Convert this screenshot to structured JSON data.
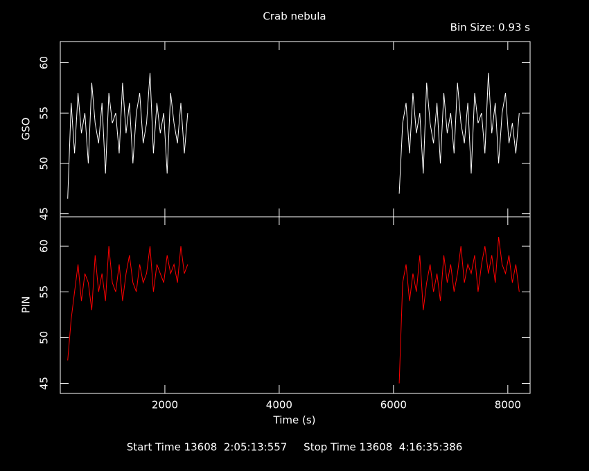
{
  "chart_data": [
    {
      "type": "line",
      "title": "Crab nebula",
      "annotation": "Bin Size: 0.93 s",
      "ylabel": "GSO",
      "xlim": [
        170,
        8390
      ],
      "ylim": [
        44.7,
        62.1
      ],
      "yticks": [
        45,
        50,
        55,
        60
      ],
      "x": [
        300,
        360,
        420,
        480,
        540,
        600,
        660,
        720,
        780,
        840,
        900,
        960,
        1020,
        1080,
        1140,
        1200,
        1260,
        1320,
        1380,
        1440,
        1500,
        1560,
        1620,
        1680,
        1740,
        1800,
        1860,
        1920,
        1980,
        2040,
        2100,
        2160,
        2220,
        2280,
        2340,
        2400,
        4300,
        6100,
        6160,
        6220,
        6280,
        6340,
        6400,
        6460,
        6520,
        6580,
        6640,
        6700,
        6760,
        6820,
        6880,
        6940,
        7000,
        7060,
        7120,
        7180,
        7240,
        7300,
        7360,
        7420,
        7480,
        7540,
        7600,
        7660,
        7720,
        7780,
        7840,
        7900,
        7960,
        8020,
        8080,
        8140,
        8200
      ],
      "series": [
        {
          "name": "GSO",
          "color": "#ffffff",
          "values": [
            46.5,
            56,
            51,
            57,
            53,
            55,
            50,
            58,
            54,
            52,
            56,
            49,
            57,
            54,
            55,
            51,
            58,
            53,
            56,
            50,
            55,
            57,
            52,
            54,
            59,
            51,
            56,
            53,
            55,
            49,
            57,
            54,
            52,
            56,
            51,
            55,
            null,
            47,
            54,
            56,
            51,
            57,
            53,
            55,
            49,
            58,
            54,
            52,
            56,
            50,
            57,
            53,
            55,
            51,
            58,
            54,
            52,
            56,
            49,
            57,
            54,
            55,
            51,
            59,
            53,
            56,
            50,
            55,
            57,
            52,
            54,
            51,
            55
          ]
        }
      ]
    },
    {
      "type": "line",
      "ylabel": "PIN",
      "xlabel": "Time (s)",
      "xlim": [
        170,
        8390
      ],
      "xticks": [
        2000,
        4000,
        6000,
        8000
      ],
      "ylim": [
        43.9,
        63.2
      ],
      "yticks": [
        45,
        50,
        55,
        60
      ],
      "x": [
        300,
        360,
        420,
        480,
        540,
        600,
        660,
        720,
        780,
        840,
        900,
        960,
        1020,
        1080,
        1140,
        1200,
        1260,
        1320,
        1380,
        1440,
        1500,
        1560,
        1620,
        1680,
        1740,
        1800,
        1860,
        1920,
        1980,
        2040,
        2100,
        2160,
        2220,
        2280,
        2340,
        2400,
        4300,
        6100,
        6160,
        6220,
        6280,
        6340,
        6400,
        6460,
        6520,
        6580,
        6640,
        6700,
        6760,
        6820,
        6880,
        6940,
        7000,
        7060,
        7120,
        7180,
        7240,
        7300,
        7360,
        7420,
        7480,
        7540,
        7600,
        7660,
        7720,
        7780,
        7840,
        7900,
        7960,
        8020,
        8080,
        8140,
        8200
      ],
      "series": [
        {
          "name": "PIN",
          "color": "#ff0000",
          "values": [
            47.5,
            52,
            55,
            58,
            54,
            57,
            56,
            53,
            59,
            55,
            57,
            54,
            60,
            56,
            55,
            58,
            54,
            57,
            59,
            56,
            55,
            58,
            56,
            57,
            60,
            55,
            58,
            57,
            56,
            59,
            57,
            58,
            56,
            60,
            57,
            58,
            null,
            45,
            56,
            58,
            54,
            57,
            55,
            59,
            53,
            56,
            58,
            55,
            57,
            54,
            59,
            56,
            58,
            55,
            57,
            60,
            56,
            58,
            57,
            59,
            55,
            58,
            60,
            57,
            59,
            56,
            61,
            58,
            57,
            59,
            56,
            58,
            55
          ]
        }
      ]
    }
  ],
  "footer": "Start Time 13608  2:05:13:557     Stop Time 13608  4:16:35:386"
}
